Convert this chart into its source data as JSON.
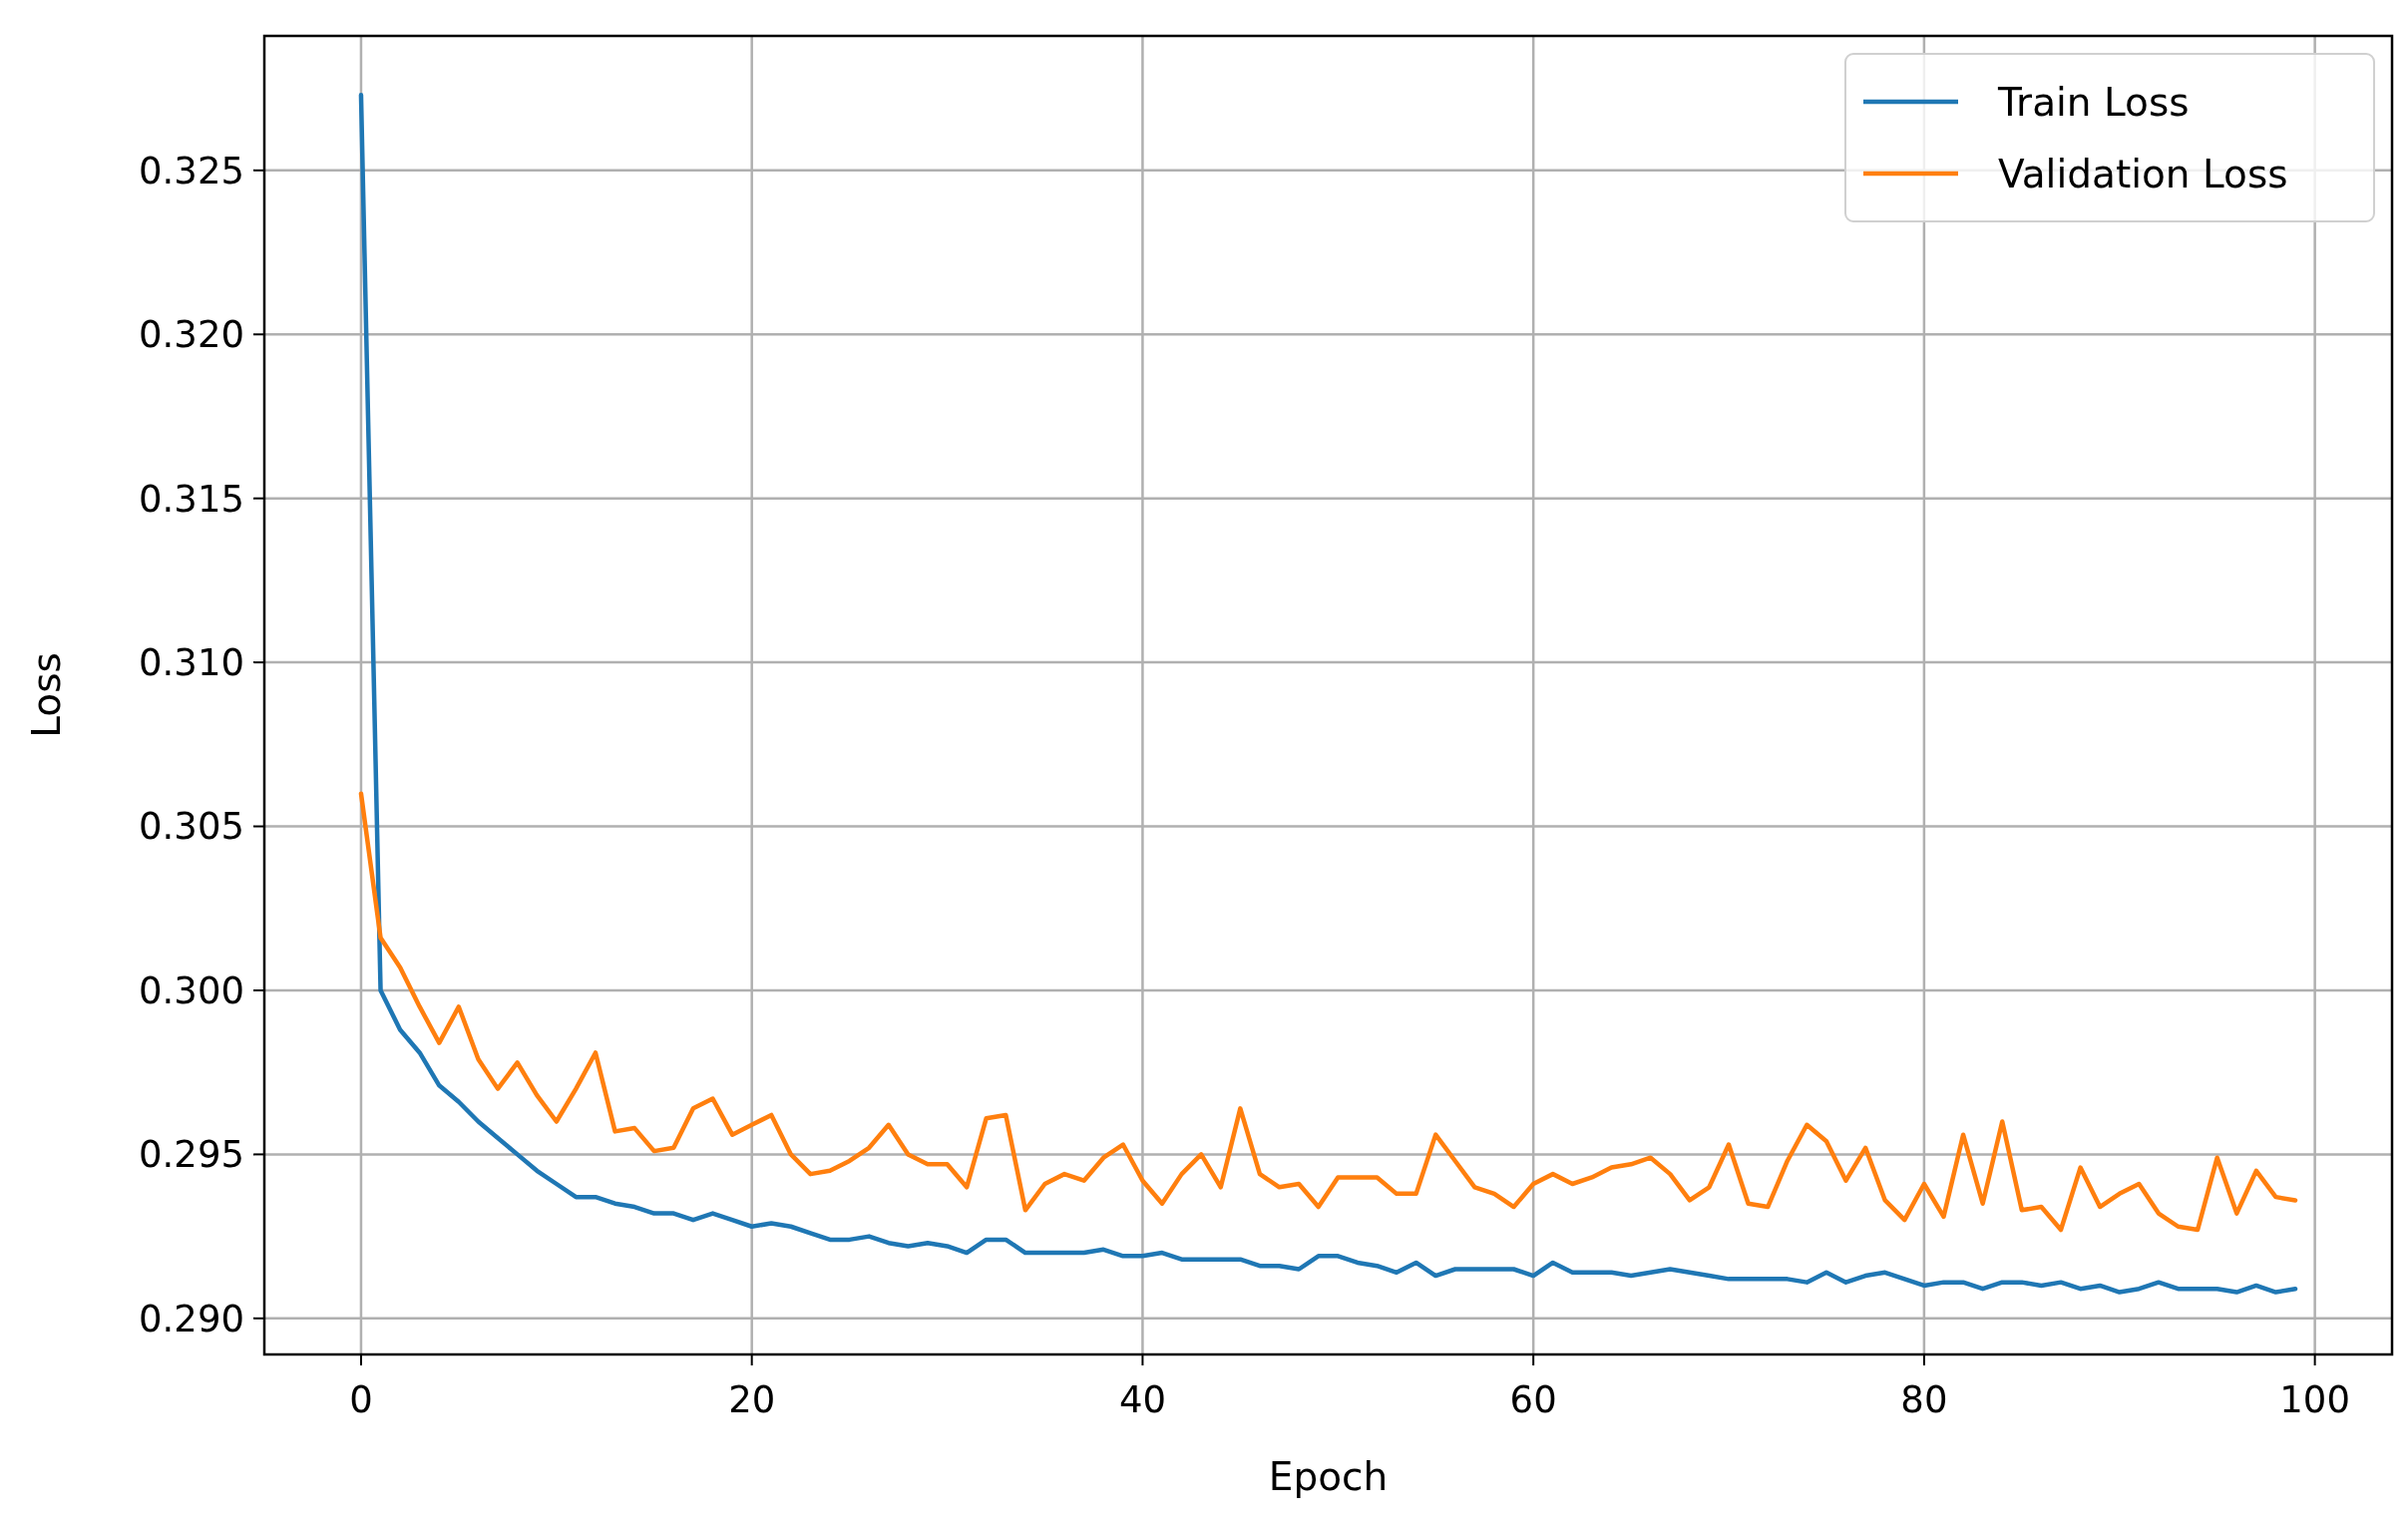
{
  "chart_data": {
    "type": "line",
    "xlabel": "Epoch",
    "ylabel": "Loss",
    "x": [
      0,
      1,
      2,
      3,
      4,
      5,
      6,
      7,
      8,
      9,
      10,
      11,
      12,
      13,
      14,
      15,
      16,
      17,
      18,
      19,
      20,
      21,
      22,
      23,
      24,
      25,
      26,
      27,
      28,
      29,
      30,
      31,
      32,
      33,
      34,
      35,
      36,
      37,
      38,
      39,
      40,
      41,
      42,
      43,
      44,
      45,
      46,
      47,
      48,
      49,
      50,
      51,
      52,
      53,
      54,
      55,
      56,
      57,
      58,
      59,
      60,
      61,
      62,
      63,
      64,
      65,
      66,
      67,
      68,
      69,
      70,
      71,
      72,
      73,
      74,
      75,
      76,
      77,
      78,
      79,
      80,
      81,
      82,
      83,
      84,
      85,
      86,
      87,
      88,
      89,
      90,
      91,
      92,
      93,
      94,
      95,
      96,
      97,
      98,
      99
    ],
    "series": [
      {
        "name": "Train Loss",
        "color": "#1f77b4",
        "values": [
          0.3273,
          0.3,
          0.2988,
          0.2981,
          0.2971,
          0.2966,
          0.296,
          0.2955,
          0.295,
          0.2945,
          0.2941,
          0.2937,
          0.2937,
          0.2935,
          0.2934,
          0.2932,
          0.2932,
          0.293,
          0.2932,
          0.293,
          0.2928,
          0.2929,
          0.2928,
          0.2926,
          0.2924,
          0.2924,
          0.2925,
          0.2923,
          0.2922,
          0.2923,
          0.2922,
          0.292,
          0.2924,
          0.2924,
          0.292,
          0.292,
          0.292,
          0.292,
          0.2921,
          0.2919,
          0.2919,
          0.292,
          0.2918,
          0.2918,
          0.2918,
          0.2918,
          0.2916,
          0.2916,
          0.2915,
          0.2919,
          0.2919,
          0.2917,
          0.2916,
          0.2914,
          0.2917,
          0.2913,
          0.2915,
          0.2915,
          0.2915,
          0.2915,
          0.2913,
          0.2917,
          0.2914,
          0.2914,
          0.2914,
          0.2913,
          0.2914,
          0.2915,
          0.2914,
          0.2913,
          0.2912,
          0.2912,
          0.2912,
          0.2912,
          0.2911,
          0.2914,
          0.2911,
          0.2913,
          0.2914,
          0.2912,
          0.291,
          0.2911,
          0.2911,
          0.2909,
          0.2911,
          0.2911,
          0.291,
          0.2911,
          0.2909,
          0.291,
          0.2908,
          0.2909,
          0.2911,
          0.2909,
          0.2909,
          0.2909,
          0.2908,
          0.291,
          0.2908,
          0.2909
        ]
      },
      {
        "name": "Validation Loss",
        "color": "#ff7f0e",
        "values": [
          0.306,
          0.3016,
          0.3007,
          0.2995,
          0.2984,
          0.2995,
          0.2979,
          0.297,
          0.2978,
          0.2968,
          0.296,
          0.297,
          0.2981,
          0.2957,
          0.2958,
          0.2951,
          0.2952,
          0.2964,
          0.2967,
          0.2956,
          0.2959,
          0.2962,
          0.295,
          0.2944,
          0.2945,
          0.2948,
          0.2952,
          0.2959,
          0.295,
          0.2947,
          0.2947,
          0.294,
          0.2961,
          0.2962,
          0.2933,
          0.2941,
          0.2944,
          0.2942,
          0.2949,
          0.2953,
          0.2942,
          0.2935,
          0.2944,
          0.295,
          0.294,
          0.2964,
          0.2944,
          0.294,
          0.2941,
          0.2934,
          0.2943,
          0.2943,
          0.2943,
          0.2938,
          0.2938,
          0.2956,
          0.2948,
          0.294,
          0.2938,
          0.2934,
          0.2941,
          0.2944,
          0.2941,
          0.2943,
          0.2946,
          0.2947,
          0.2949,
          0.2944,
          0.2936,
          0.294,
          0.2953,
          0.2935,
          0.2934,
          0.2948,
          0.2959,
          0.2954,
          0.2942,
          0.2952,
          0.2936,
          0.293,
          0.2941,
          0.2931,
          0.2956,
          0.2935,
          0.296,
          0.2933,
          0.2934,
          0.2927,
          0.2946,
          0.2934,
          0.2938,
          0.2941,
          0.2932,
          0.2928,
          0.2927,
          0.2949,
          0.2932,
          0.2945,
          0.2937,
          0.2936
        ]
      }
    ],
    "xlim": [
      -4.95,
      103.95
    ],
    "xticks": [
      0,
      20,
      40,
      60,
      80,
      100
    ],
    "ylim": [
      0.2889,
      0.3291
    ],
    "yticks": [
      {
        "value": 0.29,
        "label": "0.290"
      },
      {
        "value": 0.295,
        "label": "0.295"
      },
      {
        "value": 0.3,
        "label": "0.300"
      },
      {
        "value": 0.305,
        "label": "0.305"
      },
      {
        "value": 0.31,
        "label": "0.310"
      },
      {
        "value": 0.315,
        "label": "0.315"
      },
      {
        "value": 0.32,
        "label": "0.320"
      },
      {
        "value": 0.325,
        "label": "0.325"
      }
    ],
    "grid": true,
    "legend": "top right",
    "line_style": "solid",
    "marker": "none"
  }
}
